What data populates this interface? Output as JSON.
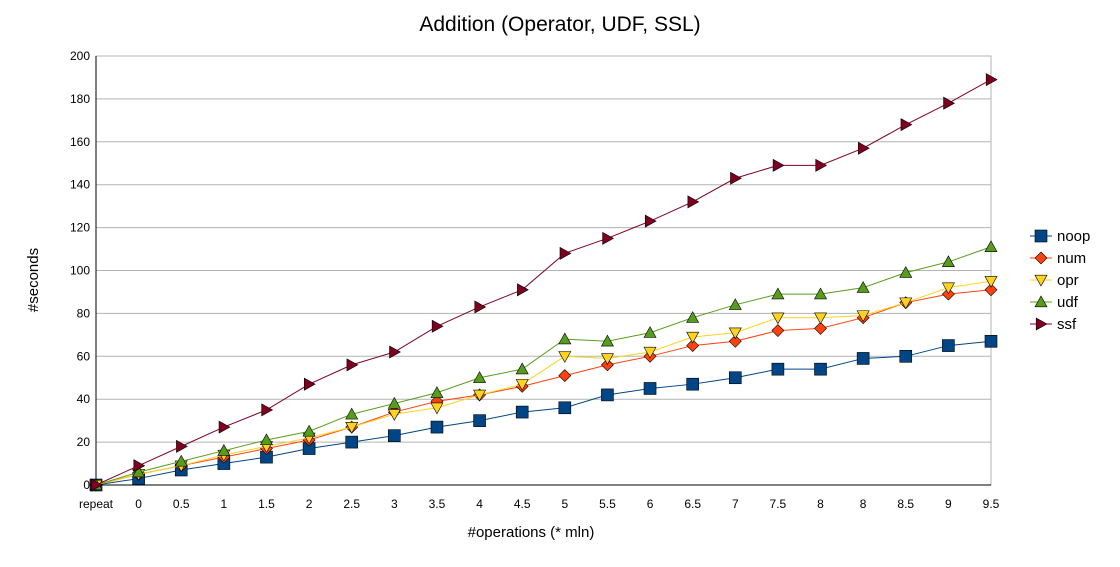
{
  "chart_data": {
    "type": "line",
    "title": "Addition (Operator, UDF, SSL)",
    "xlabel": "#operations (* mln)",
    "ylabel": "#seconds",
    "categories": [
      "repeat",
      "0",
      "0.5",
      "1",
      "1.5",
      "2",
      "2.5",
      "3",
      "3.5",
      "4",
      "4.5",
      "5",
      "5.5",
      "6",
      "6.5",
      "7",
      "7.5",
      "8",
      "8",
      "8.5",
      "9",
      "9.5"
    ],
    "ylim": [
      0,
      200
    ],
    "yticks": [
      0,
      20,
      40,
      60,
      80,
      100,
      120,
      140,
      160,
      180,
      200
    ],
    "grid": true,
    "legend_position": "right",
    "series": [
      {
        "name": "noop",
        "marker": "square",
        "color": "#004586",
        "values": [
          0,
          3,
          7,
          10,
          13,
          17,
          20,
          23,
          27,
          30,
          34,
          36,
          42,
          45,
          47,
          50,
          54,
          54,
          59,
          60,
          65,
          67
        ]
      },
      {
        "name": "num",
        "marker": "diamond",
        "color": "#ff420e",
        "values": [
          0,
          5,
          9,
          13,
          17,
          21,
          27,
          34,
          39,
          42,
          46,
          51,
          56,
          60,
          65,
          67,
          72,
          73,
          78,
          85,
          89,
          91
        ]
      },
      {
        "name": "opr",
        "marker": "triangle-down",
        "color": "#ffd320",
        "values": [
          0,
          5,
          9,
          14,
          18,
          22,
          27,
          33,
          36,
          42,
          47,
          60,
          59,
          62,
          69,
          71,
          78,
          78,
          79,
          85,
          92,
          95
        ]
      },
      {
        "name": "udf",
        "marker": "triangle-up",
        "color": "#579d1c",
        "values": [
          0,
          6,
          11,
          16,
          21,
          25,
          33,
          38,
          43,
          50,
          54,
          68,
          67,
          71,
          78,
          84,
          89,
          89,
          92,
          99,
          104,
          111
        ]
      },
      {
        "name": "ssf",
        "marker": "triangle-right",
        "color": "#7e0021",
        "values": [
          0,
          9,
          18,
          27,
          35,
          47,
          56,
          62,
          74,
          83,
          91,
          108,
          115,
          123,
          132,
          143,
          149,
          149,
          157,
          168,
          178,
          189
        ]
      }
    ]
  }
}
